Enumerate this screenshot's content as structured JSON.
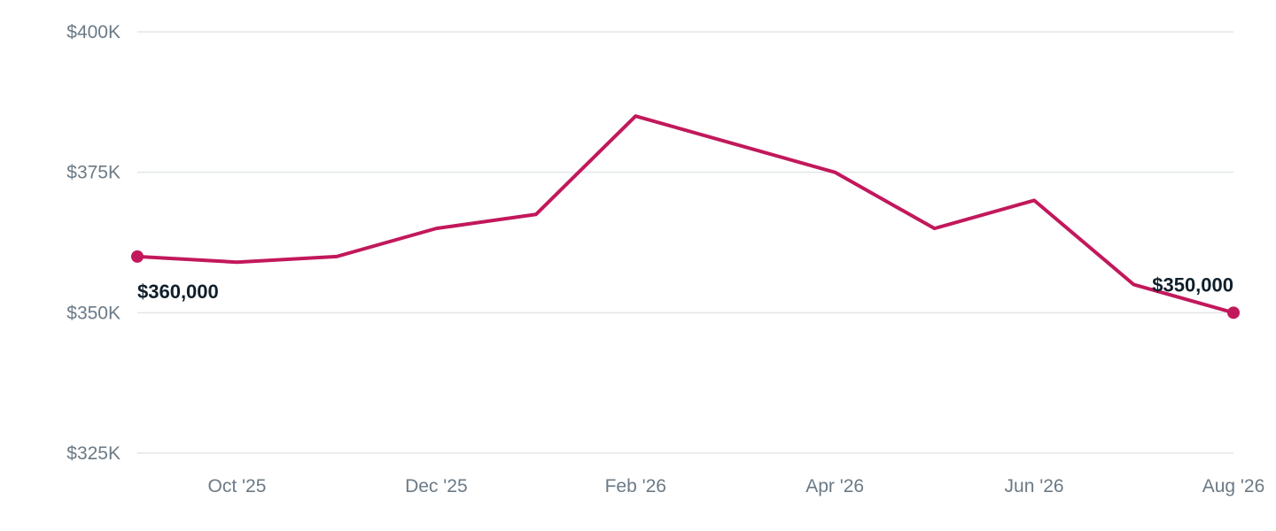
{
  "chart_data": {
    "type": "line",
    "title": "",
    "xlabel": "",
    "ylabel": "",
    "x": [
      "2025-09-01",
      "2025-10-01",
      "2025-11-01",
      "2025-12-01",
      "2026-01-01",
      "2026-02-01",
      "2026-03-01",
      "2026-04-01",
      "2026-05-01",
      "2026-06-01",
      "2026-07-01",
      "2026-08-01"
    ],
    "series": [
      {
        "values": [
          360000,
          359000,
          360000,
          365000,
          367500,
          385000,
          380000,
          375000,
          365000,
          370000,
          355000,
          350000
        ],
        "color": "#c2185b"
      }
    ],
    "ylim": [
      325000,
      400000
    ],
    "y_ticks": [
      {
        "value": 400000,
        "label": "$400K"
      },
      {
        "value": 375000,
        "label": "$375K"
      },
      {
        "value": 350000,
        "label": "$350K"
      },
      {
        "value": 325000,
        "label": "$325K"
      }
    ],
    "x_ticks": [
      {
        "x": "2025-10-01",
        "label": "Oct '25"
      },
      {
        "x": "2025-12-01",
        "label": "Dec '25"
      },
      {
        "x": "2026-02-01",
        "label": "Feb '26"
      },
      {
        "x": "2026-04-01",
        "label": "Apr '26"
      },
      {
        "x": "2026-06-01",
        "label": "Jun '26"
      },
      {
        "x": "2026-08-01",
        "label": "Aug '26"
      }
    ],
    "annotations": [
      {
        "x": "2025-09-01",
        "value": 360000,
        "label": "$360,000",
        "position": "below"
      },
      {
        "x": "2026-08-01",
        "value": 350000,
        "label": "$350,000",
        "position": "above"
      }
    ],
    "grid": true,
    "legend": "none"
  }
}
